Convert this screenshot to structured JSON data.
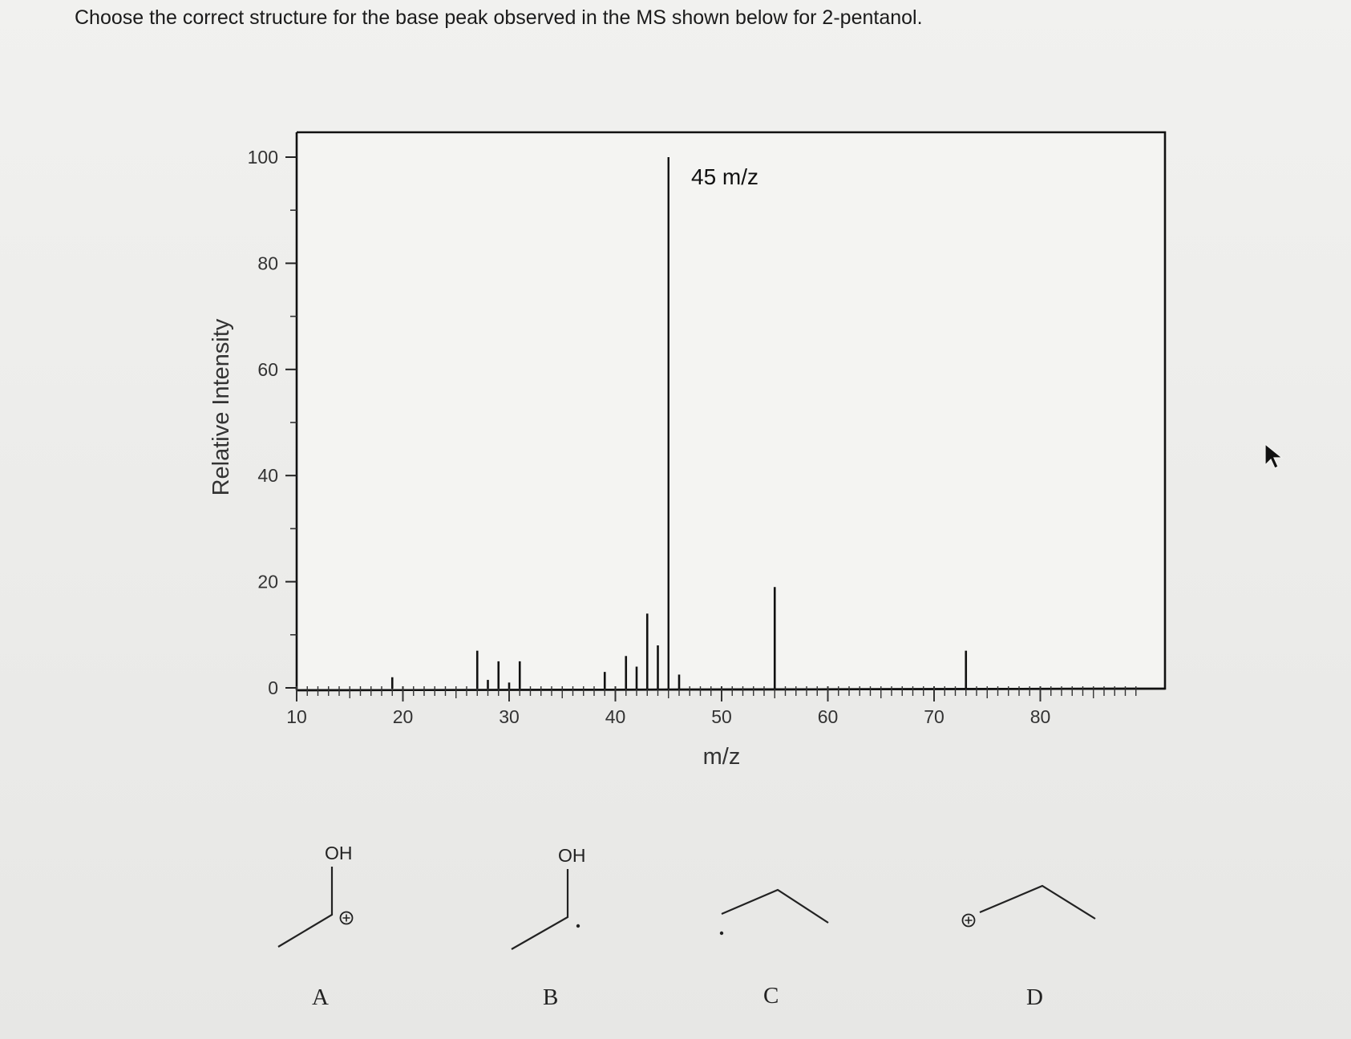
{
  "question": "Choose the correct structure for the base peak observed in the MS shown below for 2-pentanol.",
  "chart_data": {
    "type": "bar",
    "title": "",
    "xlabel": "m/z",
    "ylabel": "Relative Intensity",
    "xlim": [
      10,
      89
    ],
    "ylim": [
      0,
      100
    ],
    "x_ticks": [
      "10",
      "20",
      "30",
      "40",
      "50",
      "60",
      "70",
      "80"
    ],
    "y_ticks": [
      "0",
      "20",
      "40",
      "60",
      "80",
      "100"
    ],
    "grid": false,
    "legend": "none",
    "annotation": "45 m/z",
    "peaks": [
      {
        "x": 19,
        "y": 2
      },
      {
        "x": 27,
        "y": 7
      },
      {
        "x": 28,
        "y": 1.5
      },
      {
        "x": 29,
        "y": 5
      },
      {
        "x": 30,
        "y": 1
      },
      {
        "x": 31,
        "y": 5
      },
      {
        "x": 39,
        "y": 3
      },
      {
        "x": 41,
        "y": 6
      },
      {
        "x": 42,
        "y": 4
      },
      {
        "x": 43,
        "y": 14
      },
      {
        "x": 44,
        "y": 8
      },
      {
        "x": 45,
        "y": 100
      },
      {
        "x": 46,
        "y": 2.5
      },
      {
        "x": 55,
        "y": 19
      },
      {
        "x": 73,
        "y": 7
      }
    ]
  },
  "choices": [
    {
      "letter": "A",
      "label": "OH"
    },
    {
      "letter": "B",
      "label": "OH"
    },
    {
      "letter": "C",
      "label": ""
    },
    {
      "letter": "D",
      "label": ""
    }
  ],
  "icons": [
    "plus-circle-icon",
    "mouse-cursor-icon"
  ]
}
